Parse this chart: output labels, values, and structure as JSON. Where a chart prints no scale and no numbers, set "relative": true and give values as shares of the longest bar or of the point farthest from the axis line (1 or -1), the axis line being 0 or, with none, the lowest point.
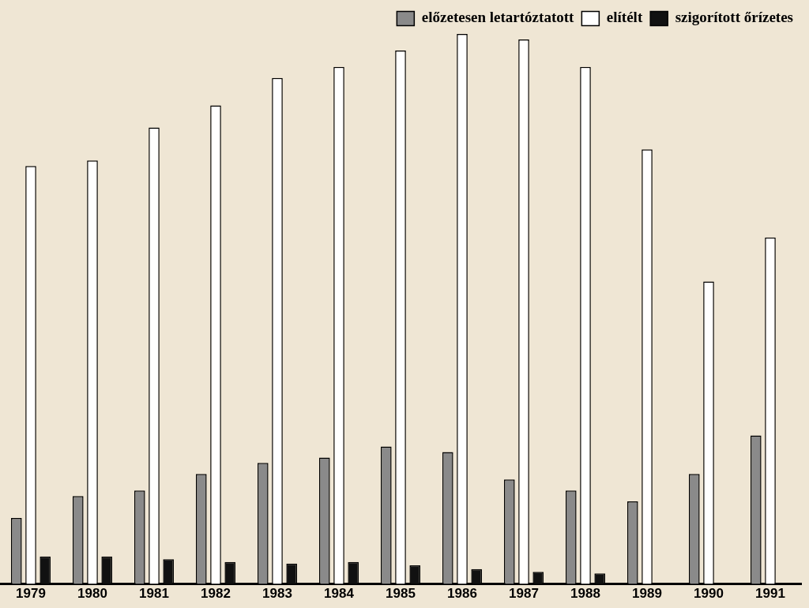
{
  "chart_data": {
    "type": "bar",
    "relative": true,
    "legend": "top right",
    "categories": [
      "1979",
      "1980",
      "1981",
      "1982",
      "1983",
      "1984",
      "1985",
      "1986",
      "1987",
      "1988",
      "1989",
      "1990",
      "1991"
    ],
    "series": [
      {
        "name": "előzetesen letartóztatott",
        "color": "#8a8a8a",
        "values": [
          0.12,
          0.16,
          0.17,
          0.2,
          0.22,
          0.23,
          0.25,
          0.24,
          0.19,
          0.17,
          0.15,
          0.2,
          0.27
        ]
      },
      {
        "name": "elítélt",
        "color": "#ffffff",
        "values": [
          0.76,
          0.77,
          0.83,
          0.87,
          0.92,
          0.94,
          0.97,
          1,
          0.99,
          0.94,
          0.79,
          0.55,
          0.63
        ]
      },
      {
        "name": "szigorított őrízetes",
        "color": "#111111",
        "values": [
          0.05,
          0.05,
          0.045,
          0.04,
          0.037,
          0.04,
          0.034,
          0.027,
          0.022,
          0.019,
          null,
          null,
          null
        ]
      }
    ]
  }
}
